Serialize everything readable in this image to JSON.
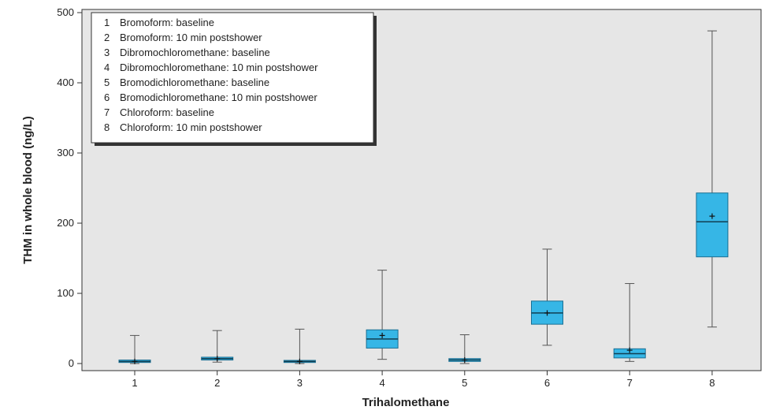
{
  "chart_data": {
    "type": "box",
    "xlabel": "Trihalomethane",
    "ylabel": "THM in whole blood (ng/L)",
    "ylim": [
      0,
      500
    ],
    "yticks": [
      0,
      100,
      200,
      300,
      400,
      500
    ],
    "categories": [
      "1",
      "2",
      "3",
      "4",
      "5",
      "6",
      "7",
      "8"
    ],
    "legend": {
      "placement": "top-left",
      "entries": [
        {
          "num": "1",
          "label": "Bromoform: baseline"
        },
        {
          "num": "2",
          "label": "Bromoform: 10 min postshower"
        },
        {
          "num": "3",
          "label": "Dibromochloromethane: baseline"
        },
        {
          "num": "4",
          "label": "Dibromochloromethane: 10 min postshower"
        },
        {
          "num": "5",
          "label": "Bromodichloromethane: baseline"
        },
        {
          "num": "6",
          "label": "Bromodichloromethane: 10 min postshower"
        },
        {
          "num": "7",
          "label": "Chloroform: baseline"
        },
        {
          "num": "8",
          "label": "Chloroform: 10 min postshower"
        }
      ]
    },
    "boxes": [
      {
        "category": "1",
        "min": 0,
        "q1": 1.5,
        "median": 3,
        "q3": 5,
        "max": 40,
        "mean": 3
      },
      {
        "category": "2",
        "min": 2,
        "q1": 5,
        "median": 7,
        "q3": 9,
        "max": 47,
        "mean": 7
      },
      {
        "category": "3",
        "min": 0,
        "q1": 1.5,
        "median": 3,
        "q3": 4.5,
        "max": 49,
        "mean": 3
      },
      {
        "category": "4",
        "min": 6,
        "q1": 22,
        "median": 35,
        "q3": 48,
        "max": 133,
        "mean": 40
      },
      {
        "category": "5",
        "min": 0,
        "q1": 3,
        "median": 5,
        "q3": 7,
        "max": 41,
        "mean": 5
      },
      {
        "category": "6",
        "min": 26,
        "q1": 56,
        "median": 72,
        "q3": 89,
        "max": 163,
        "mean": 72
      },
      {
        "category": "7",
        "min": 3,
        "q1": 8,
        "median": 14,
        "q3": 21,
        "max": 114,
        "mean": 19
      },
      {
        "category": "8",
        "min": 52,
        "q1": 152,
        "median": 202,
        "q3": 243,
        "max": 474,
        "mean": 210
      }
    ],
    "colors": {
      "box_fill": "#36b6e6",
      "box_stroke": "#1a6f93",
      "whisker": "#555555",
      "plot_background": "#e6e6e6",
      "legend_background": "#ffffff",
      "legend_shadow": "#333333"
    },
    "grid": false
  }
}
